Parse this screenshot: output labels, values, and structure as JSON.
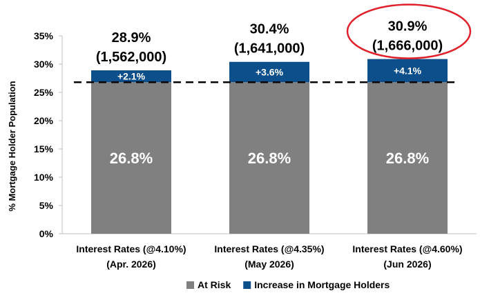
{
  "chart_data": {
    "type": "bar",
    "stacked": true,
    "ylabel": "% Mortgage Holder Population",
    "ylim": [
      0,
      35
    ],
    "yticks": [
      "0%",
      "5%",
      "10%",
      "15%",
      "20%",
      "25%",
      "30%",
      "35%"
    ],
    "categories": [
      {
        "line1": "Interest Rates (@4.10%)",
        "line2": "(Apr. 2026)"
      },
      {
        "line1": "Interest Rates    (@4.35%)",
        "line2": "(May 2026)"
      },
      {
        "line1": "Interest Rates    (@4.60%)",
        "line2": "(Jun 2026)"
      }
    ],
    "series": [
      {
        "name": "At Risk",
        "color": "#808080",
        "values": [
          26.8,
          26.8,
          26.8
        ],
        "labels": [
          "26.8%",
          "26.8%",
          "26.8%"
        ]
      },
      {
        "name": "Increase in Mortgage Holders",
        "color": "#0d4f8b",
        "values": [
          2.1,
          3.6,
          4.1
        ],
        "labels": [
          "+2.1%",
          "+3.6%",
          "+4.1%"
        ]
      }
    ],
    "total_labels": [
      {
        "pct": "28.9%",
        "count": "(1,562,000)"
      },
      {
        "pct": "30.4%",
        "count": "(1,641,000)"
      },
      {
        "pct": "30.9%",
        "count": "(1,666,000)"
      }
    ],
    "reference_line": {
      "value": 26.8,
      "style": "dashed"
    },
    "highlight_index": 2,
    "highlight_color": "#e0202a",
    "grid": false,
    "legend_position": "bottom"
  }
}
